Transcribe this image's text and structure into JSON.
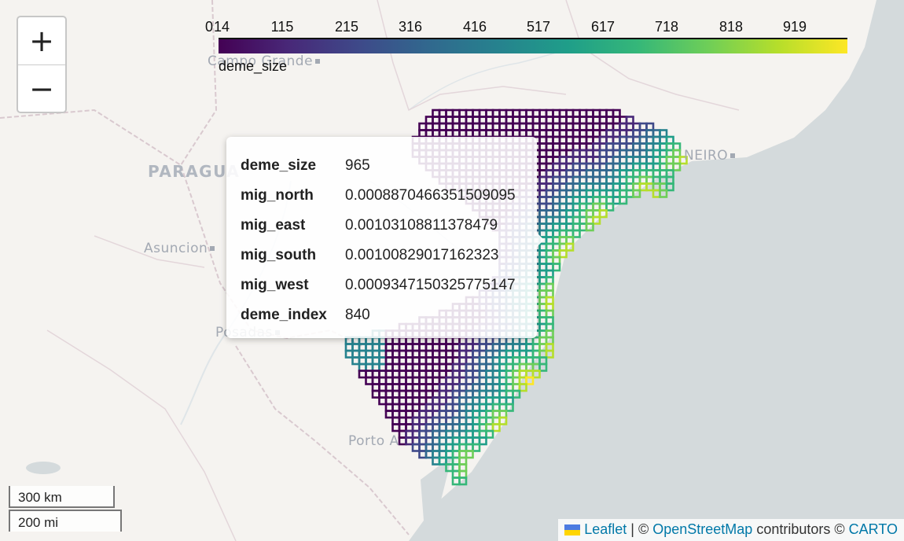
{
  "map": {
    "cities": [
      {
        "label": "Campo Grande"
      },
      {
        "label": "NEIRO"
      },
      {
        "label": "Asuncion"
      },
      {
        "label": "Posadas"
      },
      {
        "label": "Porto A"
      }
    ],
    "country": "PARAGUA"
  },
  "zoom": {
    "in_label": "+",
    "out_label": "−"
  },
  "legend": {
    "ticks": [
      "0",
      "14",
      "115",
      "215",
      "316",
      "416",
      "517",
      "617",
      "718",
      "818",
      "919"
    ],
    "caption": "deme_size",
    "colormap": [
      "#440154",
      "#482878",
      "#3e4989",
      "#31688e",
      "#26828e",
      "#1f9e89",
      "#35b779",
      "#6ece58",
      "#b5de2b",
      "#fde725"
    ]
  },
  "popup": {
    "rows": [
      {
        "key": "deme_size",
        "value": "965"
      },
      {
        "key": "mig_north",
        "value": "0.0008870466351509095"
      },
      {
        "key": "mig_east",
        "value": "0.00103108811378479"
      },
      {
        "key": "mig_south",
        "value": "0.00100829017162323"
      },
      {
        "key": "mig_west",
        "value": "0.0009347150325775147"
      },
      {
        "key": "deme_index",
        "value": "840"
      }
    ]
  },
  "scale": {
    "metric": "300 km",
    "imperial": "200 mi"
  },
  "attribution": {
    "leaflet": "Leaflet",
    "sep1": " | © ",
    "osm": "OpenStreetMap",
    "sep2": " contributors © ",
    "carto": "CARTO"
  },
  "colors": {
    "ocean": "#d4dadc",
    "land": "#f5f3f0",
    "border": "#d9c9cf",
    "link": "#0078a8"
  }
}
